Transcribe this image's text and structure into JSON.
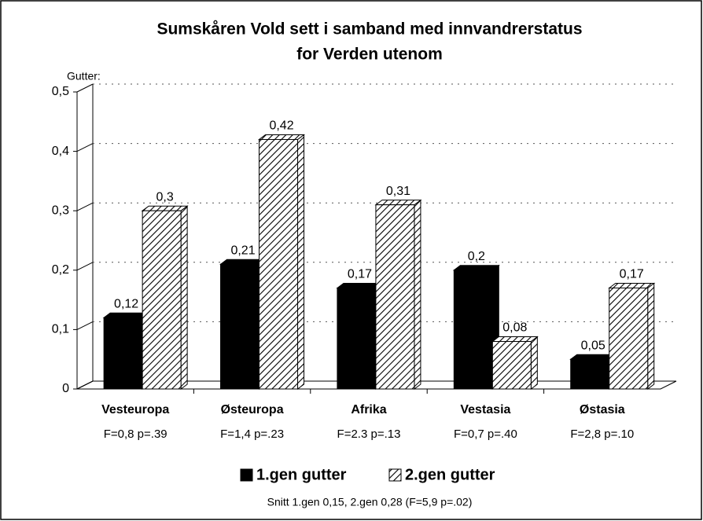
{
  "chart_data": {
    "type": "bar",
    "title": [
      "Sumskåren Vold sett i samband med innvandrerstatus",
      "for Verden utenom"
    ],
    "subtitle": "Gutter:",
    "categories": [
      "Vesteuropa",
      "Østeuropa",
      "Afrika",
      "Vestasia",
      "Østasia"
    ],
    "category_notes": [
      "F=0,8 p=.39",
      "F=1,4 p=.23",
      "F=2.3 p=.13",
      "F=0,7 p=.40",
      "F=2,8 p=.10"
    ],
    "series": [
      {
        "name": "1.gen gutter",
        "color": "#000000",
        "values": [
          0.12,
          0.21,
          0.17,
          0.2,
          0.05
        ],
        "value_labels": [
          "0,12",
          "0,21",
          "0,17",
          "0,2",
          "0,05"
        ]
      },
      {
        "name": "2.gen gutter",
        "color": "#000000",
        "pattern": "hatch",
        "values": [
          0.3,
          0.42,
          0.31,
          0.08,
          0.17
        ],
        "value_labels": [
          "0,3",
          "0,42",
          "0,31",
          "0,08",
          "0,17"
        ]
      }
    ],
    "ylim": [
      0,
      0.5
    ],
    "yticks": [
      0,
      {
        "value": 0.1,
        "label": "0,1"
      },
      {
        "value": 0.2,
        "label": "0,2"
      },
      {
        "value": 0.3,
        "label": "0,3"
      },
      {
        "value": 0.4,
        "label": "0,4"
      },
      {
        "value": 0.5,
        "label": "0,5"
      }
    ],
    "grid": true,
    "legend": "bottom",
    "footnote": "Snitt 1.gen 0,15,   2.gen 0,28 (F=5,9 p=.02)"
  }
}
